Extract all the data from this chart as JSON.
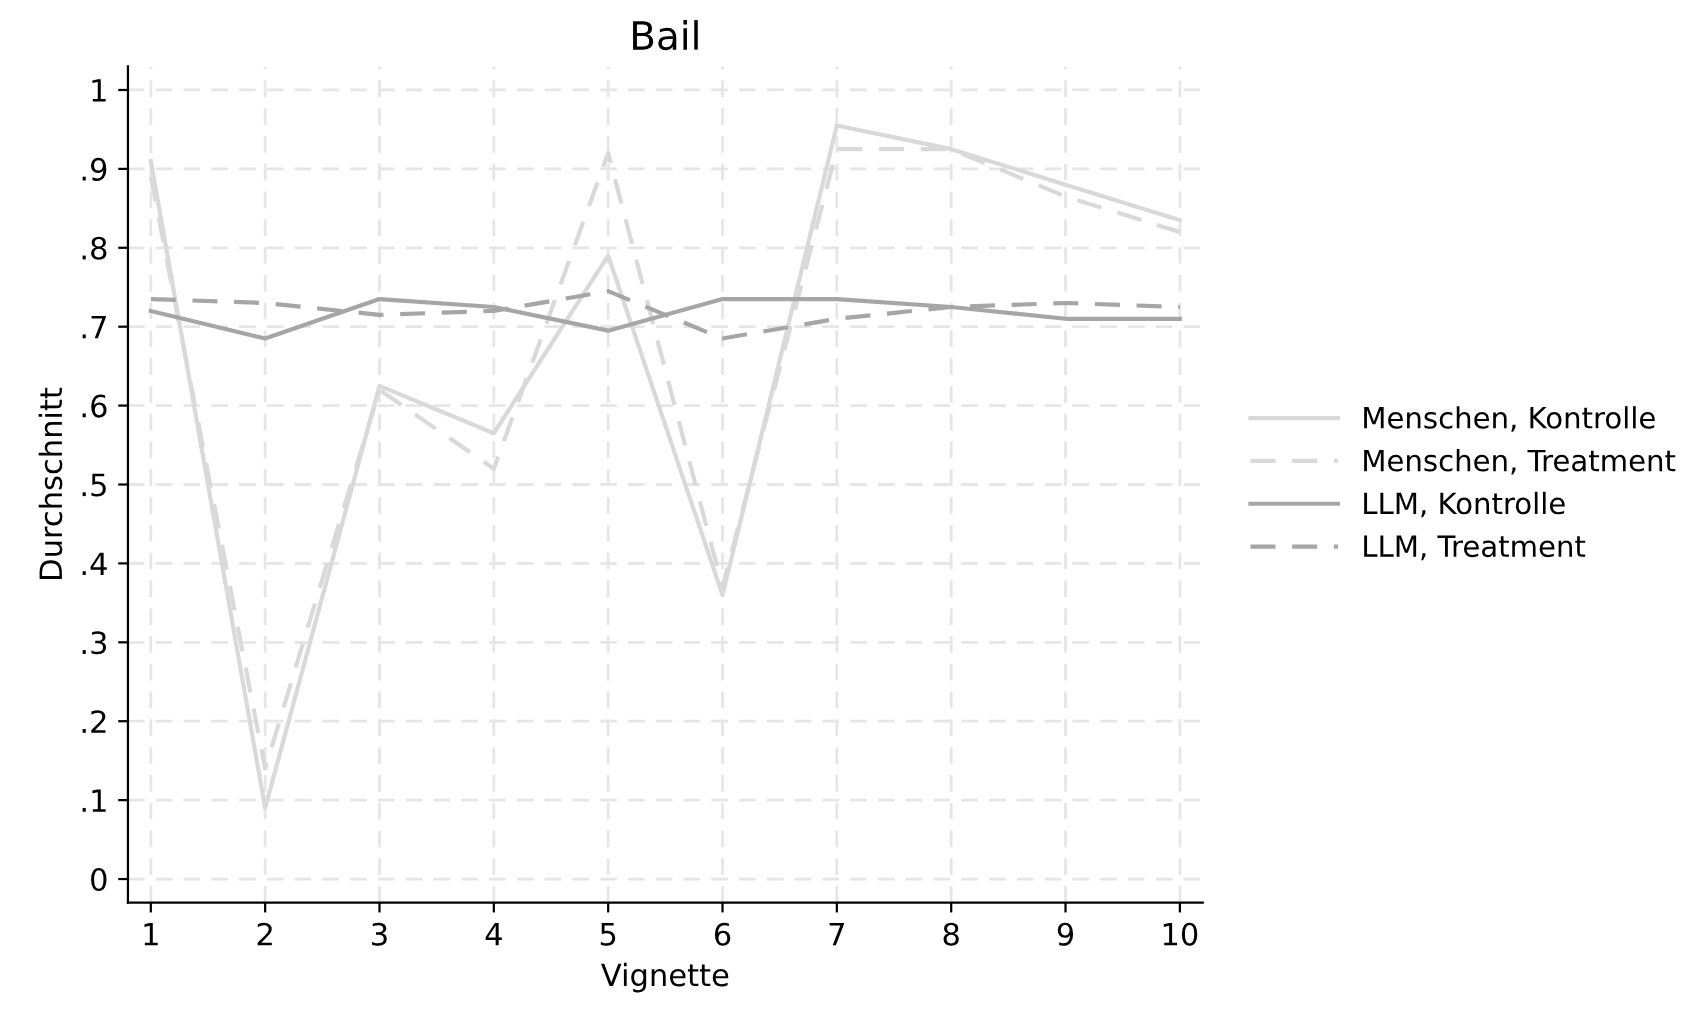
{
  "chart_data": {
    "type": "line",
    "title": "Bail",
    "xlabel": "Vignette",
    "ylabel": "Durchschnitt",
    "x": [
      1,
      2,
      3,
      4,
      5,
      6,
      7,
      8,
      9,
      10
    ],
    "xlim": [
      0.8,
      10.2
    ],
    "xticks": [
      1,
      2,
      3,
      4,
      5,
      6,
      7,
      8,
      9,
      10
    ],
    "ylim": [
      -0.03,
      1.03
    ],
    "yticks": [
      {
        "value": 0,
        "label": "0"
      },
      {
        "value": 0.1,
        "label": ".1"
      },
      {
        "value": 0.2,
        "label": ".2"
      },
      {
        "value": 0.3,
        "label": ".3"
      },
      {
        "value": 0.4,
        "label": ".4"
      },
      {
        "value": 0.5,
        "label": ".5"
      },
      {
        "value": 0.6,
        "label": ".6"
      },
      {
        "value": 0.7,
        "label": ".7"
      },
      {
        "value": 0.8,
        "label": ".8"
      },
      {
        "value": 0.9,
        "label": ".9"
      },
      {
        "value": 1,
        "label": "1"
      }
    ],
    "grid": true,
    "legend": "right",
    "marker": "none",
    "series": [
      {
        "name": "Menschen, Kontrolle",
        "color": "#d9d9d9",
        "line_style": "solid",
        "values": [
          0.91,
          0.09,
          0.625,
          0.565,
          0.79,
          0.36,
          0.955,
          0.925,
          0.88,
          0.835
        ]
      },
      {
        "name": "Menschen, Treatment",
        "color": "#d9d9d9",
        "line_style": "dashed",
        "values": [
          0.89,
          0.14,
          0.62,
          0.52,
          0.92,
          0.37,
          0.925,
          0.925,
          0.865,
          0.82
        ]
      },
      {
        "name": "LLM, Kontrolle",
        "color": "#a6a6a6",
        "line_style": "solid",
        "values": [
          0.72,
          0.685,
          0.735,
          0.725,
          0.695,
          0.735,
          0.735,
          0.725,
          0.71,
          0.71
        ]
      },
      {
        "name": "LLM, Treatment",
        "color": "#a6a6a6",
        "line_style": "dashed",
        "values": [
          0.735,
          0.73,
          0.715,
          0.72,
          0.745,
          0.685,
          0.71,
          0.725,
          0.73,
          0.725
        ]
      }
    ]
  }
}
